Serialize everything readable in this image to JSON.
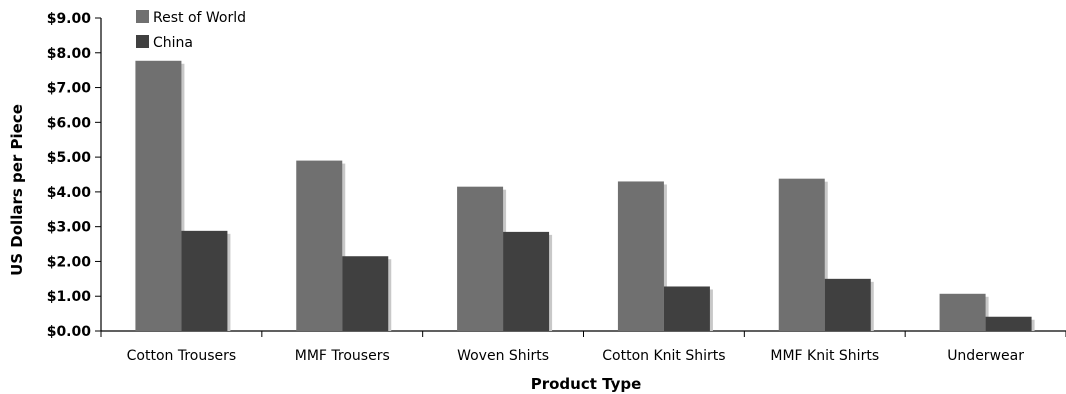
{
  "chart_data": {
    "type": "bar",
    "xlabel": "Product Type",
    "ylabel": "US Dollars per Piece",
    "ylim": [
      0,
      9
    ],
    "ytick_step": 1,
    "ytick_labels": [
      "$0.00",
      "$1.00",
      "$2.00",
      "$3.00",
      "$4.00",
      "$5.00",
      "$6.00",
      "$7.00",
      "$8.00",
      "$9.00"
    ],
    "categories": [
      "Cotton Trousers",
      "MMF Trousers",
      "Woven Shirts",
      "Cotton Knit Shirts",
      "MMF Knit Shirts",
      "Underwear"
    ],
    "series": [
      {
        "name": "Rest of World",
        "color": "#707070",
        "values": [
          7.77,
          4.9,
          4.15,
          4.3,
          4.38,
          1.07
        ]
      },
      {
        "name": "China",
        "color": "#404040",
        "values": [
          2.88,
          2.15,
          2.85,
          1.28,
          1.5,
          0.41
        ]
      }
    ],
    "legend": "top-left",
    "grid": false
  }
}
